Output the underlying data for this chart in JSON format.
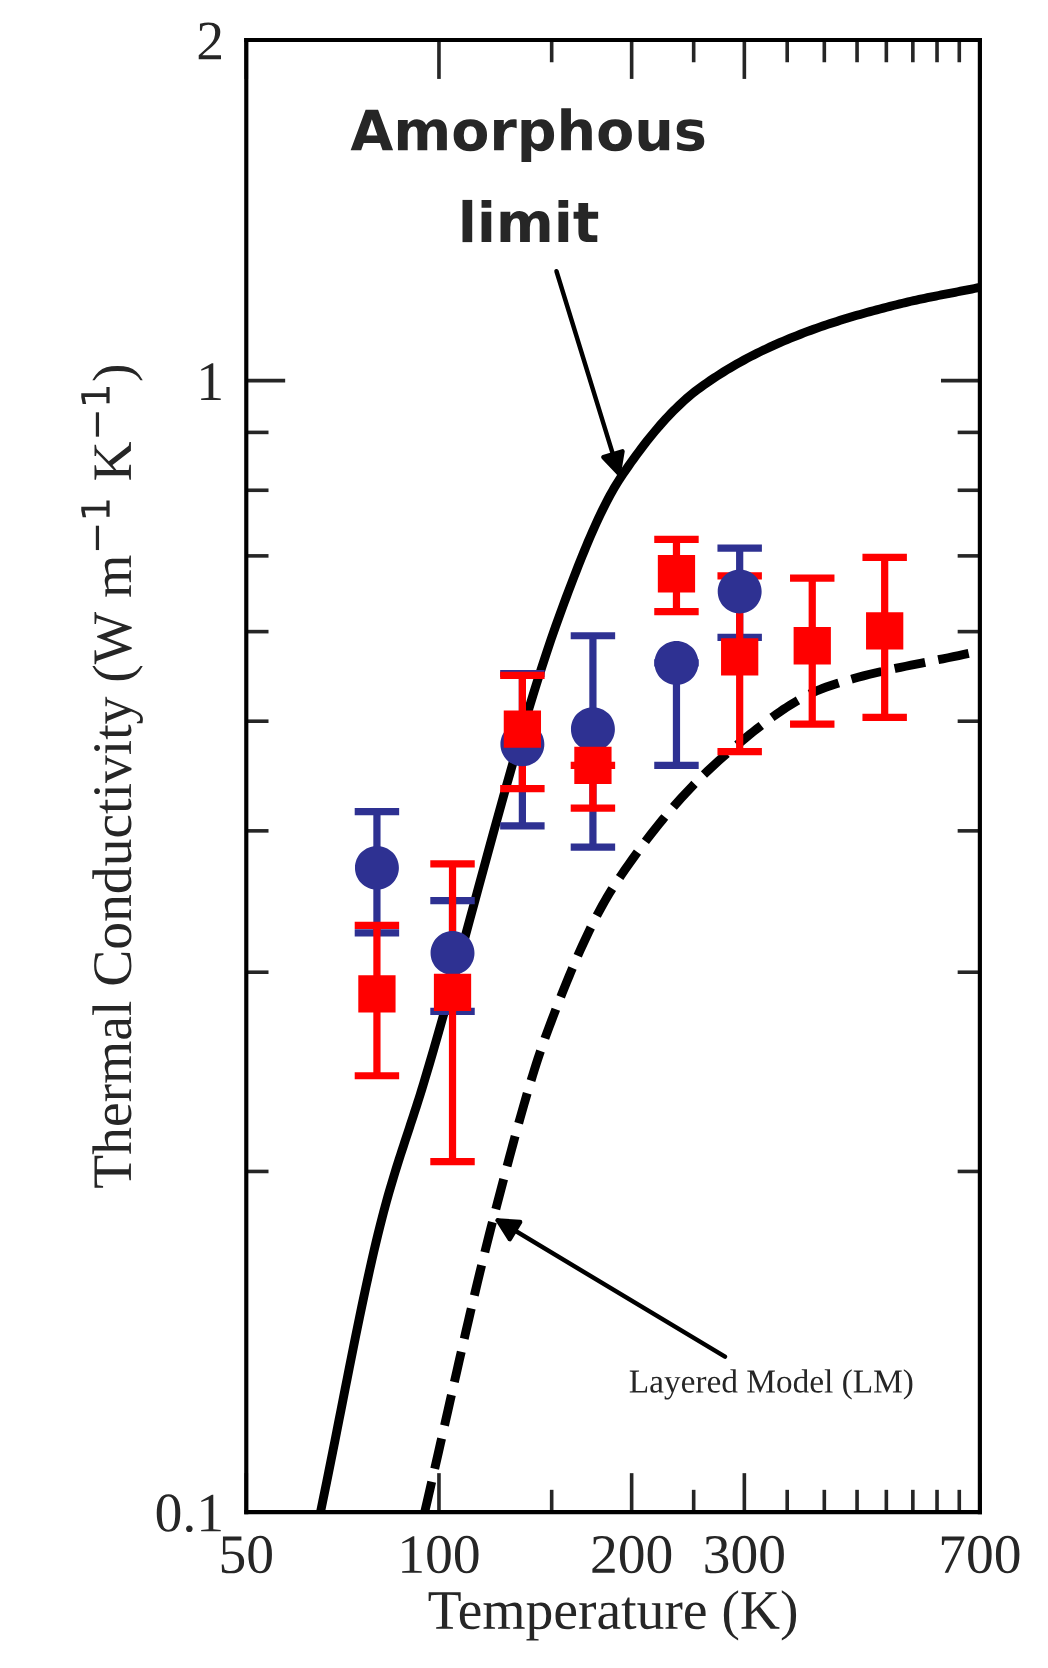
{
  "chart_data": {
    "type": "scatter",
    "xlabel": "Temperature (K)",
    "ylabel": "Thermal Conductivity (W m$^{−1}$ K$^{−1}$)",
    "log": "xy",
    "xlim": [
      50,
      700
    ],
    "ylim": [
      0.1,
      2
    ],
    "xticks": [
      50,
      100,
      {
        "value": 150,
        "label": null
      },
      200,
      {
        "value": 250,
        "label": null
      },
      300,
      {
        "value": 350,
        "label": null
      },
      {
        "value": 400,
        "label": null
      },
      {
        "value": 450,
        "label": null
      },
      {
        "value": 500,
        "label": null
      },
      {
        "value": 550,
        "label": null
      },
      {
        "value": 600,
        "label": null
      },
      {
        "value": 650,
        "label": null
      },
      700
    ],
    "yticks": [
      0.1,
      {
        "value": 0.2,
        "label": null
      },
      {
        "value": 0.3,
        "label": null
      },
      {
        "value": 0.4,
        "label": null
      },
      {
        "value": 0.5,
        "label": null
      },
      {
        "value": 0.6,
        "label": null
      },
      {
        "value": 0.7,
        "label": null
      },
      {
        "value": 0.8,
        "label": null
      },
      {
        "value": 0.9,
        "label": null
      },
      1,
      2
    ],
    "grid": false,
    "legend": false,
    "series": [
      {
        "type": "line",
        "color": "#000000",
        "line_style": "solid",
        "marker": "none",
        "x": [
          65.3,
          81.5,
          95,
          154.6,
          192,
          256,
          367,
          525,
          700
        ],
        "values": [
          0.1,
          0.182,
          0.241,
          0.622,
          0.82,
          0.986,
          1.099,
          1.169,
          1.209
        ]
      },
      {
        "type": "line",
        "color": "#000000",
        "line_style": "dashed",
        "marker": "none",
        "x": [
          95,
          121.7,
          147.4,
          187.4,
          281.6,
          403,
          700
        ],
        "values": [
          0.1,
          0.182,
          0.265,
          0.357,
          0.468,
          0.536,
          0.577
        ]
      },
      {
        "color": "#2e3192",
        "marker": "circle",
        "x": [
          80,
          105,
          135,
          174,
          235,
          295
        ],
        "values": [
          0.371,
          0.312,
          0.477,
          0.492,
          0.563,
          0.651
        ],
        "errors": [
          [
            0.325,
            0.416
          ],
          [
            0.277,
            0.347
          ],
          [
            0.404,
            0.551
          ],
          [
            0.387,
            0.595
          ],
          [
            0.457,
            0.563
          ],
          [
            0.593,
            0.711
          ]
        ]
      },
      {
        "color": "#ff0000",
        "marker": "square",
        "x": [
          80,
          105,
          135,
          174,
          235,
          295,
          383,
          497
        ],
        "values": [
          0.287,
          0.288,
          0.492,
          0.457,
          0.675,
          0.57,
          0.583,
          0.601
        ],
        "errors": [
          [
            0.243,
            0.33
          ],
          [
            0.204,
            0.374
          ],
          [
            0.436,
            0.549
          ],
          [
            0.419,
            0.457
          ],
          [
            0.625,
            0.724
          ],
          [
            0.47,
            0.672
          ],
          [
            0.497,
            0.669
          ],
          [
            0.504,
            0.698
          ]
        ]
      }
    ],
    "annotations": [
      {
        "text": "Amorphous\nlimit",
        "x": 192,
        "y": 0.82
      },
      {
        "text": "Layered Model (LM)",
        "x": 121.7,
        "y": 0.182
      }
    ]
  }
}
